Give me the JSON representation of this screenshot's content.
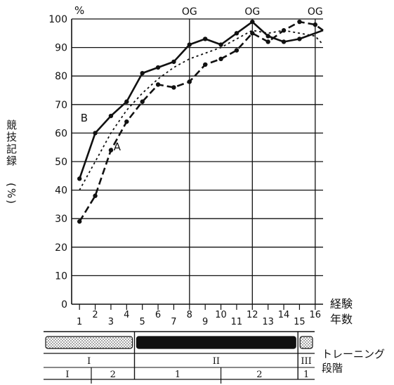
{
  "chart_data": {
    "type": "line",
    "ylabel": "競技記録\n(%)",
    "ylabel_parts": [
      "競技記録",
      "(%)"
    ],
    "y_unit": "%",
    "xlabel": "経験\n年数",
    "xlabel_parts": [
      "経験",
      "年数"
    ],
    "ylim": [
      0,
      100
    ],
    "y_ticks": [
      "0",
      "10",
      "20",
      "30",
      "40",
      "50",
      "60",
      "70",
      "80",
      "90",
      "100"
    ],
    "x_ticks": [
      "1",
      "2",
      "3",
      "4",
      "5",
      "6",
      "7",
      "8",
      "9",
      "10",
      "11",
      "12",
      "13",
      "14",
      "15",
      "16"
    ],
    "grid": true,
    "og_markers": [
      {
        "label": "OG",
        "x": 8
      },
      {
        "label": "OG",
        "x": 12
      },
      {
        "label": "OG",
        "x": 16
      }
    ],
    "series": [
      {
        "name": "B",
        "style": "solid",
        "x": [
          1,
          2,
          3,
          4,
          5,
          6,
          7,
          8,
          9,
          10,
          11,
          12,
          13,
          14,
          15,
          16.5
        ],
        "y": [
          44,
          60,
          66,
          71,
          81,
          83,
          85,
          91,
          93,
          91,
          95,
          99,
          94,
          92,
          93,
          96
        ]
      },
      {
        "name": "",
        "style": "dotted",
        "x": [
          1,
          2,
          3,
          4,
          5,
          6,
          7,
          8,
          9,
          10,
          11,
          12,
          13,
          14,
          15,
          16,
          16.5
        ],
        "y": [
          40,
          50,
          60,
          68,
          74,
          79,
          83,
          86,
          88,
          90,
          93,
          96,
          95,
          96,
          95,
          94,
          91
        ]
      },
      {
        "name": "A",
        "style": "dashed",
        "x": [
          1,
          2,
          3,
          4,
          5,
          6,
          7,
          8,
          9,
          10,
          11,
          12,
          13,
          14,
          15,
          16,
          16.5
        ],
        "y": [
          29,
          38,
          54,
          64,
          71,
          77,
          76,
          78,
          84,
          86,
          89,
          95,
          92,
          96,
          99,
          98,
          96
        ]
      }
    ]
  },
  "training_stages": {
    "label": "トレーニング\n段階",
    "label_parts": [
      "トレーニング",
      "段階"
    ],
    "phases": [
      {
        "name": "I",
        "from": 0.5,
        "to": 4.5,
        "sub": [
          {
            "label": "I",
            "from": 0.5,
            "to": 1.75
          },
          {
            "label": "2",
            "from": 1.75,
            "to": 4.5
          }
        ]
      },
      {
        "name": "II",
        "from": 4.5,
        "to": 14.9,
        "sub": [
          {
            "label": "1",
            "from": 4.5,
            "to": 10
          },
          {
            "label": "2",
            "from": 10,
            "to": 14.9
          }
        ]
      },
      {
        "name": "III",
        "from": 14.9,
        "to": 16.5,
        "sub": [
          {
            "label": "1",
            "from": 14.9,
            "to": 16.5
          }
        ]
      }
    ]
  }
}
